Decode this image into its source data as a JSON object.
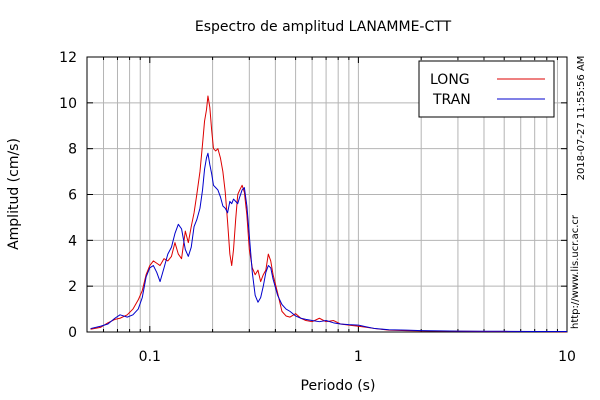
{
  "chart_data": {
    "type": "line",
    "title": "Espectro de amplitud LANAMME-CTT",
    "xlabel": "Periodo (s)",
    "ylabel": "Amplitud (cm/s)",
    "x_scale": "log",
    "xlim": [
      0.05,
      10
    ],
    "ylim": [
      0,
      12
    ],
    "x_ticks": [
      {
        "value": 0.1,
        "label": "0.1"
      },
      {
        "value": 1,
        "label": "1"
      },
      {
        "value": 10,
        "label": "10"
      }
    ],
    "y_ticks": [
      {
        "value": 0,
        "label": "0"
      },
      {
        "value": 2,
        "label": "2"
      },
      {
        "value": 4,
        "label": "4"
      },
      {
        "value": 6,
        "label": "6"
      },
      {
        "value": 8,
        "label": "8"
      },
      {
        "value": 10,
        "label": "10"
      },
      {
        "value": 12,
        "label": "12"
      }
    ],
    "grid": true,
    "legend_position": "top-right",
    "series": [
      {
        "name": "LONG",
        "color": "#dd0000",
        "points": [
          [
            0.052,
            0.12
          ],
          [
            0.058,
            0.2
          ],
          [
            0.063,
            0.4
          ],
          [
            0.068,
            0.55
          ],
          [
            0.072,
            0.6
          ],
          [
            0.078,
            0.75
          ],
          [
            0.083,
            1.0
          ],
          [
            0.088,
            1.4
          ],
          [
            0.092,
            1.8
          ],
          [
            0.096,
            2.5
          ],
          [
            0.1,
            2.9
          ],
          [
            0.104,
            3.1
          ],
          [
            0.108,
            3.0
          ],
          [
            0.112,
            2.9
          ],
          [
            0.117,
            3.2
          ],
          [
            0.122,
            3.1
          ],
          [
            0.127,
            3.3
          ],
          [
            0.132,
            3.9
          ],
          [
            0.137,
            3.4
          ],
          [
            0.142,
            3.2
          ],
          [
            0.148,
            4.4
          ],
          [
            0.153,
            3.9
          ],
          [
            0.158,
            4.6
          ],
          [
            0.163,
            5.2
          ],
          [
            0.168,
            6.0
          ],
          [
            0.174,
            7.0
          ],
          [
            0.179,
            8.2
          ],
          [
            0.183,
            9.2
          ],
          [
            0.187,
            9.7
          ],
          [
            0.19,
            10.3
          ],
          [
            0.194,
            9.8
          ],
          [
            0.198,
            8.8
          ],
          [
            0.202,
            8.0
          ],
          [
            0.207,
            7.9
          ],
          [
            0.212,
            8.0
          ],
          [
            0.218,
            7.6
          ],
          [
            0.224,
            7.0
          ],
          [
            0.23,
            6.1
          ],
          [
            0.236,
            4.8
          ],
          [
            0.242,
            3.4
          ],
          [
            0.247,
            2.9
          ],
          [
            0.252,
            3.6
          ],
          [
            0.258,
            4.9
          ],
          [
            0.264,
            6.0
          ],
          [
            0.27,
            6.2
          ],
          [
            0.277,
            6.4
          ],
          [
            0.284,
            6.1
          ],
          [
            0.292,
            5.1
          ],
          [
            0.3,
            3.6
          ],
          [
            0.31,
            2.8
          ],
          [
            0.32,
            2.5
          ],
          [
            0.33,
            2.7
          ],
          [
            0.34,
            2.2
          ],
          [
            0.35,
            2.5
          ],
          [
            0.36,
            2.7
          ],
          [
            0.37,
            3.4
          ],
          [
            0.38,
            3.1
          ],
          [
            0.39,
            2.5
          ],
          [
            0.41,
            1.7
          ],
          [
            0.43,
            0.9
          ],
          [
            0.45,
            0.7
          ],
          [
            0.47,
            0.65
          ],
          [
            0.5,
            0.8
          ],
          [
            0.53,
            0.6
          ],
          [
            0.56,
            0.5
          ],
          [
            0.6,
            0.45
          ],
          [
            0.65,
            0.6
          ],
          [
            0.7,
            0.45
          ],
          [
            0.76,
            0.5
          ],
          [
            0.82,
            0.35
          ],
          [
            0.9,
            0.3
          ],
          [
            1.0,
            0.25
          ],
          [
            1.1,
            0.2
          ],
          [
            1.2,
            0.15
          ],
          [
            1.4,
            0.08
          ],
          [
            1.7,
            0.06
          ],
          [
            2.0,
            0.05
          ],
          [
            2.5,
            0.04
          ],
          [
            3.0,
            0.03
          ],
          [
            4.0,
            0.02
          ],
          [
            5.0,
            0.02
          ],
          [
            7.0,
            0.02
          ],
          [
            10.0,
            0.01
          ]
        ]
      },
      {
        "name": "TRAN",
        "color": "#0000cc",
        "points": [
          [
            0.052,
            0.15
          ],
          [
            0.058,
            0.25
          ],
          [
            0.063,
            0.35
          ],
          [
            0.068,
            0.6
          ],
          [
            0.072,
            0.75
          ],
          [
            0.078,
            0.65
          ],
          [
            0.083,
            0.75
          ],
          [
            0.088,
            1.0
          ],
          [
            0.092,
            1.5
          ],
          [
            0.096,
            2.4
          ],
          [
            0.1,
            2.8
          ],
          [
            0.104,
            2.9
          ],
          [
            0.108,
            2.6
          ],
          [
            0.112,
            2.2
          ],
          [
            0.117,
            2.8
          ],
          [
            0.122,
            3.4
          ],
          [
            0.127,
            3.7
          ],
          [
            0.132,
            4.3
          ],
          [
            0.137,
            4.7
          ],
          [
            0.142,
            4.5
          ],
          [
            0.148,
            3.6
          ],
          [
            0.153,
            3.3
          ],
          [
            0.158,
            3.7
          ],
          [
            0.163,
            4.6
          ],
          [
            0.168,
            4.9
          ],
          [
            0.174,
            5.4
          ],
          [
            0.179,
            6.2
          ],
          [
            0.183,
            7.1
          ],
          [
            0.187,
            7.6
          ],
          [
            0.19,
            7.8
          ],
          [
            0.194,
            7.3
          ],
          [
            0.198,
            6.9
          ],
          [
            0.202,
            6.4
          ],
          [
            0.207,
            6.3
          ],
          [
            0.212,
            6.2
          ],
          [
            0.218,
            5.9
          ],
          [
            0.224,
            5.5
          ],
          [
            0.23,
            5.4
          ],
          [
            0.236,
            5.2
          ],
          [
            0.242,
            5.7
          ],
          [
            0.247,
            5.6
          ],
          [
            0.252,
            5.8
          ],
          [
            0.258,
            5.7
          ],
          [
            0.264,
            5.6
          ],
          [
            0.27,
            5.9
          ],
          [
            0.277,
            6.2
          ],
          [
            0.284,
            6.3
          ],
          [
            0.292,
            5.5
          ],
          [
            0.3,
            4.2
          ],
          [
            0.31,
            2.6
          ],
          [
            0.32,
            1.6
          ],
          [
            0.33,
            1.3
          ],
          [
            0.34,
            1.5
          ],
          [
            0.35,
            2.0
          ],
          [
            0.36,
            2.6
          ],
          [
            0.37,
            2.9
          ],
          [
            0.38,
            2.8
          ],
          [
            0.39,
            2.3
          ],
          [
            0.41,
            1.6
          ],
          [
            0.43,
            1.2
          ],
          [
            0.45,
            1.0
          ],
          [
            0.47,
            0.9
          ],
          [
            0.5,
            0.7
          ],
          [
            0.53,
            0.6
          ],
          [
            0.56,
            0.55
          ],
          [
            0.6,
            0.5
          ],
          [
            0.65,
            0.45
          ],
          [
            0.7,
            0.5
          ],
          [
            0.76,
            0.4
          ],
          [
            0.82,
            0.35
          ],
          [
            0.9,
            0.32
          ],
          [
            1.0,
            0.3
          ],
          [
            1.1,
            0.22
          ],
          [
            1.2,
            0.15
          ],
          [
            1.4,
            0.1
          ],
          [
            1.7,
            0.08
          ],
          [
            2.0,
            0.06
          ],
          [
            2.5,
            0.05
          ],
          [
            3.0,
            0.04
          ],
          [
            4.0,
            0.03
          ],
          [
            5.0,
            0.03
          ],
          [
            7.0,
            0.02
          ],
          [
            10.0,
            0.02
          ]
        ]
      }
    ],
    "side_text": {
      "timestamp": "2018-07-27 11:55:56 AM",
      "url": "http://www.lis.ucr.ac.cr"
    }
  }
}
